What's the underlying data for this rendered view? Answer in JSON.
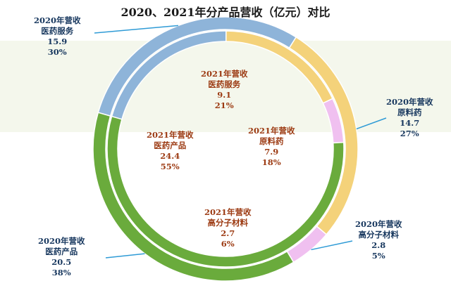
{
  "chart_data": {
    "type": "pie",
    "subtype": "double-donut",
    "title": "2020、2021年分产品营收（亿元）对比",
    "unit": "亿元",
    "categories": [
      "医药服务",
      "原料药",
      "高分子材料",
      "医药产品"
    ],
    "colors": [
      "#8eb4d9",
      "#f4d27a",
      "#f0c0f0",
      "#6aab3c"
    ],
    "series": [
      {
        "name": "2020年营收",
        "ring": "outer",
        "values": [
          15.9,
          14.7,
          2.8,
          20.5
        ],
        "percents": [
          "30%",
          "27%",
          "5%",
          "38%"
        ]
      },
      {
        "name": "2021年营收",
        "ring": "inner",
        "values": [
          9.1,
          7.9,
          2.7,
          24.4
        ],
        "percents": [
          "21%",
          "18%",
          "6%",
          "55%"
        ]
      }
    ],
    "labels": {
      "outer": [
        {
          "year": "2020年营收",
          "cat": "医药服务",
          "value": "15.9",
          "pct": "30%"
        },
        {
          "year": "2020年营收",
          "cat": "原料药",
          "value": "14.7",
          "pct": "27%"
        },
        {
          "year": "2020年营收",
          "cat": "高分子材料",
          "value": "2.8",
          "pct": "5%"
        },
        {
          "year": "2020年营收",
          "cat": "医药产品",
          "value": "20.5",
          "pct": "38%"
        }
      ],
      "inner": [
        {
          "year": "2021年营收",
          "cat": "医药服务",
          "value": "9.1",
          "pct": "21%"
        },
        {
          "year": "2021年营收",
          "cat": "原料药",
          "value": "7.9",
          "pct": "18%"
        },
        {
          "year": "2021年营收",
          "cat": "高分子材料",
          "value": "2.7",
          "pct": "6%"
        },
        {
          "year": "2021年营收",
          "cat": "医药产品",
          "value": "24.4",
          "pct": "55%"
        }
      ]
    }
  }
}
